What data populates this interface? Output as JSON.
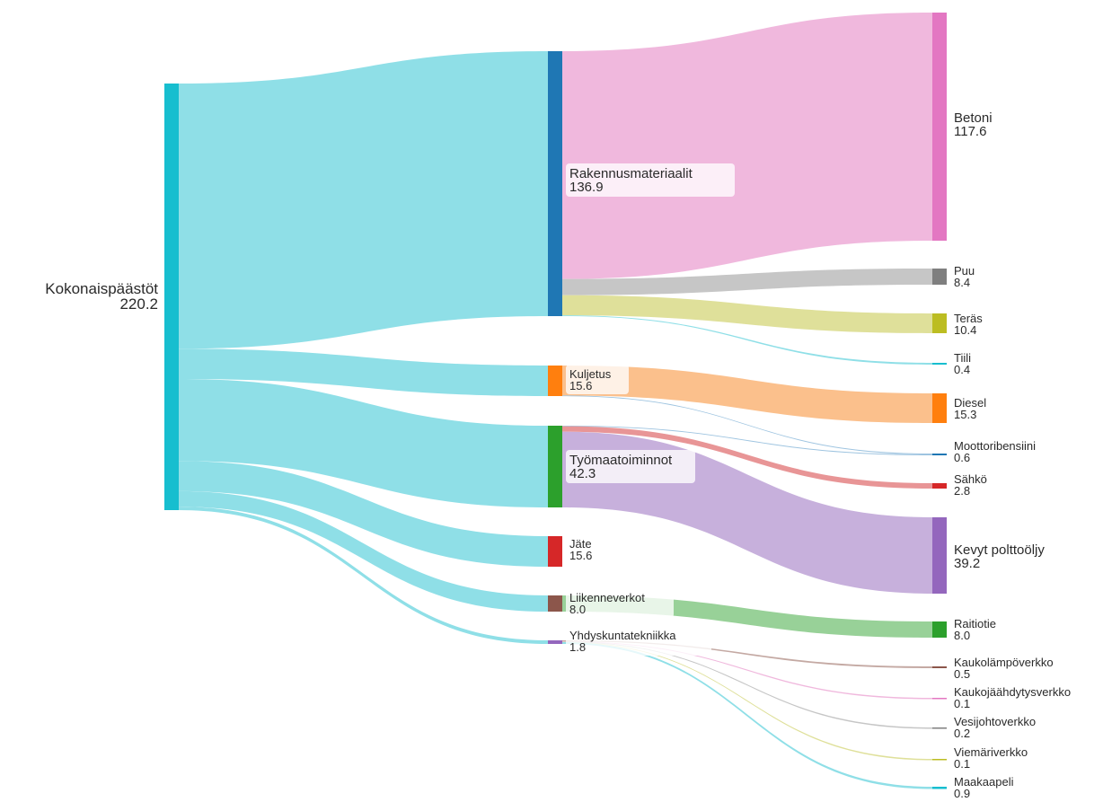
{
  "nodes": [
    {
      "id": "total",
      "name": "Kokonaispäästöt",
      "value": "220.2",
      "color": "#17becf"
    },
    {
      "id": "rakennus",
      "name": "Rakennusmateriaalit",
      "value": "136.9",
      "color": "#1f77b4"
    },
    {
      "id": "kuljetus",
      "name": "Kuljetus",
      "value": "15.6",
      "color": "#ff7f0e"
    },
    {
      "id": "tyomaa",
      "name": "Työmaatoiminnot",
      "value": "42.3",
      "color": "#2ca02c"
    },
    {
      "id": "jate",
      "name": "Jäte",
      "value": "15.6",
      "color": "#d62728"
    },
    {
      "id": "liikenne",
      "name": "Liikenneverkot",
      "value": "8.0",
      "color": "#8c564b"
    },
    {
      "id": "yhdys",
      "name": "Yhdyskuntatekniikka",
      "value": "1.8",
      "color": "#9467bd"
    },
    {
      "id": "betoni",
      "name": "Betoni",
      "value": "117.6",
      "color": "#e377c2"
    },
    {
      "id": "puu",
      "name": "Puu",
      "value": "8.4",
      "color": "#7f7f7f"
    },
    {
      "id": "teras",
      "name": "Teräs",
      "value": "10.4",
      "color": "#bcbd22"
    },
    {
      "id": "tiili",
      "name": "Tiili",
      "value": "0.4",
      "color": "#17becf"
    },
    {
      "id": "diesel",
      "name": "Diesel",
      "value": "15.3",
      "color": "#ff7f0e"
    },
    {
      "id": "moottori",
      "name": "Moottoribensiini",
      "value": "0.6",
      "color": "#1f77b4"
    },
    {
      "id": "sahko",
      "name": "Sähkö",
      "value": "2.8",
      "color": "#d62728"
    },
    {
      "id": "kevyt",
      "name": "Kevyt polttoöljy",
      "value": "39.2",
      "color": "#9467bd"
    },
    {
      "id": "raitiotie",
      "name": "Raitiotie",
      "value": "8.0",
      "color": "#2ca02c"
    },
    {
      "id": "kaukolampo",
      "name": "Kaukolämpöverkko",
      "value": "0.5",
      "color": "#8c564b"
    },
    {
      "id": "kaukojaah",
      "name": "Kaukojäähdytysverkko",
      "value": "0.1",
      "color": "#e377c2"
    },
    {
      "id": "vesijohto",
      "name": "Vesijohtoverkko",
      "value": "0.2",
      "color": "#7f7f7f"
    },
    {
      "id": "viemari",
      "name": "Viemäriverkko",
      "value": "0.1",
      "color": "#bcbd22"
    },
    {
      "id": "maakaapeli",
      "name": "Maakaapeli",
      "value": "0.9",
      "color": "#17becf"
    }
  ],
  "links": [
    {
      "source": "total",
      "target": "rakennus",
      "value": 136.9,
      "color": "#8fdfe7"
    },
    {
      "source": "total",
      "target": "kuljetus",
      "value": 15.6,
      "color": "#8fdfe7"
    },
    {
      "source": "total",
      "target": "tyomaa",
      "value": 42.3,
      "color": "#8fdfe7"
    },
    {
      "source": "total",
      "target": "jate",
      "value": 15.6,
      "color": "#8fdfe7"
    },
    {
      "source": "total",
      "target": "liikenne",
      "value": 8.0,
      "color": "#8fdfe7"
    },
    {
      "source": "total",
      "target": "yhdys",
      "value": 1.8,
      "color": "#8fdfe7"
    },
    {
      "source": "rakennus",
      "target": "betoni",
      "value": 117.6,
      "color": "#f0b8dd"
    },
    {
      "source": "rakennus",
      "target": "puu",
      "value": 8.4,
      "color": "#c6c6c6"
    },
    {
      "source": "rakennus",
      "target": "teras",
      "value": 10.4,
      "color": "#dfe09a"
    },
    {
      "source": "rakennus",
      "target": "tiili",
      "value": 0.4,
      "color": "#8fdfe7"
    },
    {
      "source": "kuljetus",
      "target": "diesel",
      "value": 15.3,
      "color": "#fbc08c"
    },
    {
      "source": "kuljetus",
      "target": "moottori",
      "value": 0.3,
      "color": "#9ec4e0"
    },
    {
      "source": "tyomaa",
      "target": "moottori",
      "value": 0.3,
      "color": "#9ec4e0"
    },
    {
      "source": "tyomaa",
      "target": "sahko",
      "value": 2.8,
      "color": "#e89596"
    },
    {
      "source": "tyomaa",
      "target": "kevyt",
      "value": 39.2,
      "color": "#c7b0dc"
    },
    {
      "source": "liikenne",
      "target": "raitiotie",
      "value": 8.0,
      "color": "#98d198"
    },
    {
      "source": "yhdys",
      "target": "kaukolampo",
      "value": 0.5,
      "color": "#c4a9a3"
    },
    {
      "source": "yhdys",
      "target": "kaukojaah",
      "value": 0.1,
      "color": "#f0b8dd"
    },
    {
      "source": "yhdys",
      "target": "vesijohto",
      "value": 0.2,
      "color": "#c6c6c6"
    },
    {
      "source": "yhdys",
      "target": "viemari",
      "value": 0.1,
      "color": "#dfe09a"
    },
    {
      "source": "yhdys",
      "target": "maakaapeli",
      "value": 0.9,
      "color": "#8fdfe7"
    }
  ]
}
